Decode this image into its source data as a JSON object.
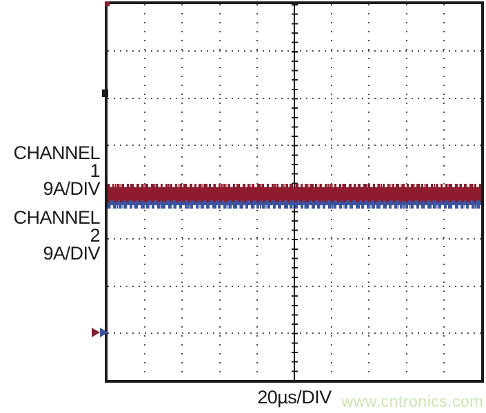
{
  "labels": {
    "channel1_name": "CHANNEL 1",
    "channel1_scale": "9A/DIV",
    "channel2_name": "CHANNEL 2",
    "channel2_scale": "9A/DIV",
    "timebase": "20µs/DIV",
    "watermark": "www.cntronics.com"
  },
  "colors": {
    "channel1_trace": "#8e1c2e",
    "channel2_trace": "#3a55a4",
    "graticule_border": "#1b1b1b",
    "grid_dots": "#4f4f4f",
    "watermark_text": "#c9e7ae",
    "background": "#ffffff"
  },
  "chart_data": {
    "type": "line",
    "title": "",
    "xlabel": "20µs/DIV",
    "ylabel": "",
    "x_divisions": 10,
    "y_divisions": 8,
    "minor_ticks_per_division": 5,
    "timebase_per_div": "20µs",
    "grid": "dotted graticule with solid center crosshair",
    "series": [
      {
        "name": "CHANNEL 1",
        "vertical_scale": "9A/DIV",
        "color": "#8e1c2e",
        "shape": "flat horizontal band with high-frequency switching ripple",
        "center_div_from_middle": -0.04,
        "ripple_peak_to_peak_div": 0.28
      },
      {
        "name": "CHANNEL 2",
        "vertical_scale": "9A/DIV",
        "color": "#3a55a4",
        "shape": "flat horizontal band with high-frequency switching ripple",
        "center_div_from_middle": -0.24,
        "ripple_peak_to_peak_div": 0.12
      }
    ],
    "trigger_markers": {
      "y_div_from_middle": -3,
      "colors": [
        "#8e1c2e",
        "#3a55a4"
      ],
      "direction": "pointing-right"
    }
  }
}
